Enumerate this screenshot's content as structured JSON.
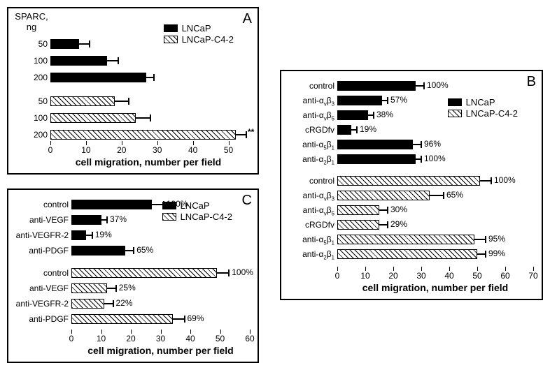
{
  "panelA": {
    "label": "A",
    "xlabel": "cell migration, number per field",
    "ytitle": "SPARC, ng",
    "legend": [
      "LNCaP",
      "LNCaP-C4-2"
    ],
    "xmax": 55,
    "ticks": [
      0,
      10,
      20,
      30,
      40,
      50
    ],
    "bars": [
      {
        "label": "50",
        "value": 8,
        "err": 3,
        "style": "solid"
      },
      {
        "label": "100",
        "value": 16,
        "err": 3,
        "style": "solid"
      },
      {
        "label": "200",
        "value": 27,
        "err": 2,
        "style": "solid"
      },
      {
        "label": "50",
        "value": 18,
        "err": 4,
        "style": "hatched"
      },
      {
        "label": "100",
        "value": 24,
        "err": 4,
        "style": "hatched"
      },
      {
        "label": "200",
        "value": 52,
        "err": 3,
        "style": "hatched",
        "mark": "**"
      }
    ]
  },
  "panelB": {
    "label": "B",
    "xlabel": "cell migration, number per field",
    "legend": [
      "LNCaP",
      "LNCaP-C4-2"
    ],
    "xmax": 70,
    "ticks": [
      0,
      10,
      20,
      30,
      40,
      50,
      60,
      70
    ],
    "bars": [
      {
        "label": "control",
        "value": 28,
        "err": 3,
        "style": "solid",
        "pct": "100%"
      },
      {
        "label": "anti-αvβ3",
        "value": 16,
        "err": 2,
        "style": "solid",
        "pct": "57%"
      },
      {
        "label": "anti-αvβ5",
        "value": 11,
        "err": 2,
        "style": "solid",
        "pct": "38%"
      },
      {
        "label": "cRGDfv",
        "value": 5,
        "err": 2,
        "style": "solid",
        "pct": "19%"
      },
      {
        "label": "anti-α5β1",
        "value": 27,
        "err": 3,
        "style": "solid",
        "pct": "96%"
      },
      {
        "label": "anti-α2β1",
        "value": 28,
        "err": 2,
        "style": "solid",
        "pct": "100%"
      },
      {
        "label": "control",
        "value": 51,
        "err": 4,
        "style": "hatched",
        "pct": "100%"
      },
      {
        "label": "anti-αvβ3",
        "value": 33,
        "err": 5,
        "style": "hatched",
        "pct": "65%"
      },
      {
        "label": "anti-αvβ5",
        "value": 15,
        "err": 3,
        "style": "hatched",
        "pct": "30%"
      },
      {
        "label": "cRGDfv",
        "value": 15,
        "err": 3,
        "style": "hatched",
        "pct": "29%"
      },
      {
        "label": "anti-α5β1",
        "value": 49,
        "err": 4,
        "style": "hatched",
        "pct": "95%"
      },
      {
        "label": "anti-α2β1",
        "value": 50,
        "err": 3,
        "style": "hatched",
        "pct": "99%"
      }
    ]
  },
  "panelC": {
    "label": "C",
    "xlabel": "cell migration, number per field",
    "legend": [
      "LNCaP",
      "LNCaP-C4-2"
    ],
    "xmax": 60,
    "ticks": [
      0,
      10,
      20,
      30,
      40,
      50,
      60
    ],
    "bars": [
      {
        "label": "control",
        "value": 27,
        "err": 4,
        "style": "solid",
        "pct": "100%"
      },
      {
        "label": "anti-VEGF",
        "value": 10,
        "err": 2,
        "style": "solid",
        "pct": "37%"
      },
      {
        "label": "anti-VEGFR-2",
        "value": 5,
        "err": 2,
        "style": "solid",
        "pct": "19%"
      },
      {
        "label": "anti-PDGF",
        "value": 18,
        "err": 3,
        "style": "solid",
        "pct": "65%"
      },
      {
        "label": "control",
        "value": 49,
        "err": 4,
        "style": "hatched",
        "pct": "100%"
      },
      {
        "label": "anti-VEGF",
        "value": 12,
        "err": 3,
        "style": "hatched",
        "pct": "25%"
      },
      {
        "label": "anti-VEGFR-2",
        "value": 11,
        "err": 3,
        "style": "hatched",
        "pct": "22%"
      },
      {
        "label": "anti-PDGF",
        "value": 34,
        "err": 4,
        "style": "hatched",
        "pct": "69%"
      }
    ]
  }
}
